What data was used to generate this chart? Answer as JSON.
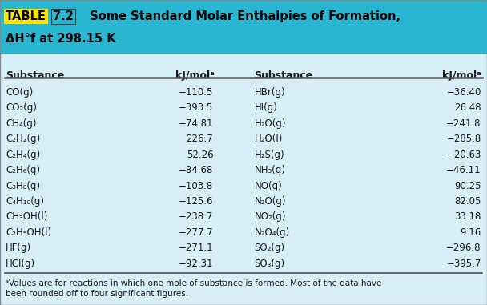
{
  "title_line2": "ΔH°f at 298.15 K",
  "header_bg": "#29B6D1",
  "table_bg": "#D6EEF5",
  "col_headers": [
    "Substance",
    "kJ/molᵃ",
    "Substance",
    "kJ/molᵃ"
  ],
  "left_substances": [
    "CO(g)",
    "CO₂(g)",
    "CH₄(g)",
    "C₂H₂(g)",
    "C₂H₄(g)",
    "C₂H₆(g)",
    "C₃H₈(g)",
    "C₄H₁₀(g)",
    "CH₃OH(l)",
    "C₂H₅OH(l)",
    "HF(g)",
    "HCl(g)"
  ],
  "left_values": [
    "−110.5",
    "−393.5",
    "−74.81",
    "226.7",
    "52.26",
    "−84.68",
    "−103.8",
    "−125.6",
    "−238.7",
    "−277.7",
    "−271.1",
    "−92.31"
  ],
  "right_substances": [
    "HBr(g)",
    "HI(g)",
    "H₂O(g)",
    "H₂O(l)",
    "H₂S(g)",
    "NH₃(g)",
    "NO(g)",
    "N₂O(g)",
    "NO₂(g)",
    "N₂O₄(g)",
    "SO₂(g)",
    "SO₃(g)"
  ],
  "right_values": [
    "−36.40",
    "26.48",
    "−241.8",
    "−285.8",
    "−20.63",
    "−46.11",
    "90.25",
    "82.05",
    "33.18",
    "9.16",
    "−296.8",
    "−395.7"
  ],
  "footnote": "ᵃValues are for reactions in which one mole of substance is formed. Most of the data have\nbeen rounded off to four significant figures.",
  "table_text_color": "#1a1a1a",
  "highlight_yellow": "#FFE600",
  "highlight_cyan": "#29B6D1",
  "line_color": "#555555"
}
